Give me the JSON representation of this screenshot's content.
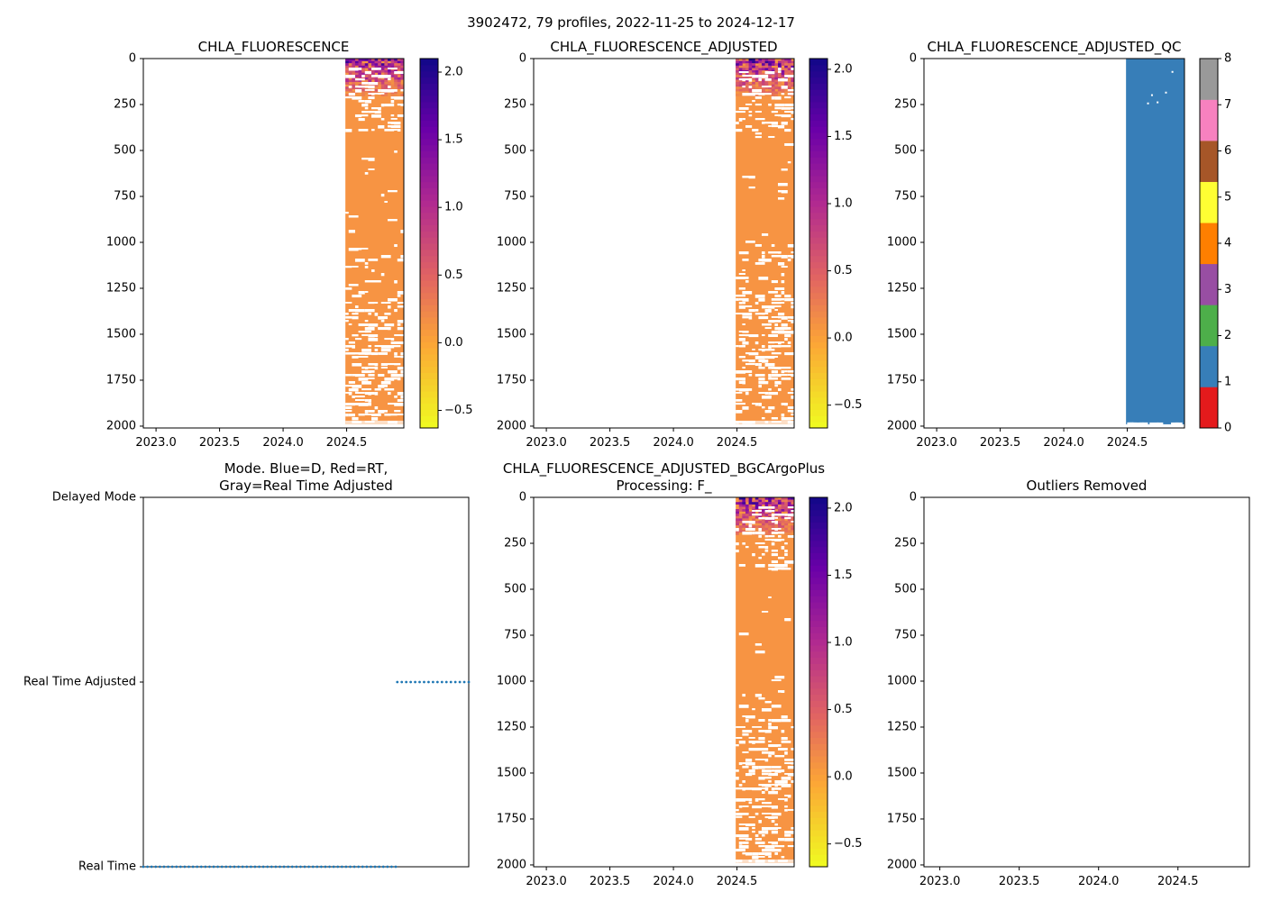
{
  "figure": {
    "suptitle": "3902472, 79 profiles, 2022-11-25 to 2024-12-17"
  },
  "colors": {
    "fill_orange": "#f79443",
    "qc_blue": "#377eb8",
    "mode_dots": "#1f77b4",
    "axis": "#000000",
    "background": "#ffffff"
  },
  "chart_data": [
    {
      "id": "chla-fluorescence",
      "type": "heatmap",
      "title": "CHLA_FLUORESCENCE",
      "x_ticks": [
        "2023.0",
        "2023.5",
        "2024.0",
        "2024.5"
      ],
      "x_tick_values": [
        2023.0,
        2023.5,
        2024.0,
        2024.5
      ],
      "xlim": [
        2022.9,
        2024.95
      ],
      "y_ticks": [
        "0",
        "250",
        "500",
        "750",
        "1000",
        "1250",
        "1500",
        "1750",
        "2000"
      ],
      "y_tick_values": [
        0,
        250,
        500,
        750,
        1000,
        1250,
        1500,
        1750,
        2000
      ],
      "ylim": [
        2010,
        0
      ],
      "data_x_range": [
        2024.49,
        2024.96
      ],
      "data_depth_range": [
        0,
        1990
      ],
      "colorbar": {
        "cmap": "plasma_r",
        "ticks": [
          "−0.5",
          "0.0",
          "0.5",
          "1.0",
          "1.5",
          "2.0"
        ],
        "tick_values": [
          -0.5,
          0.0,
          0.5,
          1.0,
          1.5,
          2.0
        ],
        "range": [
          -0.63,
          2.1
        ]
      }
    },
    {
      "id": "chla-fluorescence-adjusted",
      "type": "heatmap",
      "title": "CHLA_FLUORESCENCE_ADJUSTED",
      "x_ticks": [
        "2023.0",
        "2023.5",
        "2024.0",
        "2024.5"
      ],
      "x_tick_values": [
        2023.0,
        2023.5,
        2024.0,
        2024.5
      ],
      "xlim": [
        2022.9,
        2024.95
      ],
      "y_ticks": [
        "0",
        "250",
        "500",
        "750",
        "1000",
        "1250",
        "1500",
        "1750",
        "2000"
      ],
      "y_tick_values": [
        0,
        250,
        500,
        750,
        1000,
        1250,
        1500,
        1750,
        2000
      ],
      "ylim": [
        2010,
        0
      ],
      "data_x_range": [
        2024.49,
        2024.96
      ],
      "data_depth_range": [
        0,
        1990
      ],
      "colorbar": {
        "cmap": "plasma_r",
        "ticks": [
          "−0.5",
          "0.0",
          "0.5",
          "1.0",
          "1.5",
          "2.0"
        ],
        "tick_values": [
          -0.5,
          0.0,
          0.5,
          1.0,
          1.5,
          2.0
        ],
        "range": [
          -0.67,
          2.08
        ]
      }
    },
    {
      "id": "chla-fluorescence-adjusted-qc",
      "type": "heatmap",
      "title": "CHLA_FLUORESCENCE_ADJUSTED_QC",
      "x_ticks": [
        "2023.0",
        "2023.5",
        "2024.0",
        "2024.5"
      ],
      "x_tick_values": [
        2023.0,
        2023.5,
        2024.0,
        2024.5
      ],
      "xlim": [
        2022.9,
        2024.95
      ],
      "y_ticks": [
        "0",
        "250",
        "500",
        "750",
        "1000",
        "1250",
        "1500",
        "1750",
        "2000"
      ],
      "y_tick_values": [
        0,
        250,
        500,
        750,
        1000,
        1250,
        1500,
        1750,
        2000
      ],
      "ylim": [
        2010,
        0
      ],
      "data_x_range": [
        2024.49,
        2024.96
      ],
      "data_depth_range": [
        0,
        1990
      ],
      "qc_value": 1,
      "colorbar": {
        "cmap": "categorical",
        "ticks": [
          "0",
          "1",
          "2",
          "3",
          "4",
          "5",
          "6",
          "7",
          "8"
        ],
        "tick_values": [
          0,
          1,
          2,
          3,
          4,
          5,
          6,
          7,
          8
        ],
        "range": [
          0,
          8
        ],
        "category_colors": [
          "#e41a1c",
          "#377eb8",
          "#4daf4a",
          "#984ea3",
          "#ff7f00",
          "#ffff33",
          "#a65628",
          "#f781bf",
          "#999999"
        ]
      }
    },
    {
      "id": "data-mode",
      "type": "scatter",
      "title": "Mode. Blue=D, Red=RT,\nGray=Real Time Adjusted",
      "y_ticks": [
        "Delayed Mode",
        "Real Time Adjusted",
        "Real Time"
      ],
      "y_tick_values": [
        2,
        1,
        0
      ],
      "ylim": [
        0,
        2
      ],
      "xlim": [
        2022.9,
        2024.95
      ],
      "series": [
        {
          "name": "Real Time",
          "y": 0,
          "x_start": 2022.9,
          "x_end": 2024.49,
          "points": 62
        },
        {
          "name": "Real Time Adjusted",
          "y": 1,
          "x_start": 2024.5,
          "x_end": 2024.95,
          "points": 17
        }
      ]
    },
    {
      "id": "chla-bgcargoplus",
      "type": "heatmap",
      "title": "CHLA_FLUORESCENCE_ADJUSTED_BGCArgoPlus\nProcessing: F_",
      "x_ticks": [
        "2023.0",
        "2023.5",
        "2024.0",
        "2024.5"
      ],
      "x_tick_values": [
        2023.0,
        2023.5,
        2024.0,
        2024.5
      ],
      "xlim": [
        2022.9,
        2024.95
      ],
      "y_ticks": [
        "0",
        "250",
        "500",
        "750",
        "1000",
        "1250",
        "1500",
        "1750",
        "2000"
      ],
      "y_tick_values": [
        0,
        250,
        500,
        750,
        1000,
        1250,
        1500,
        1750,
        2000
      ],
      "ylim": [
        2010,
        0
      ],
      "data_x_range": [
        2024.49,
        2024.96
      ],
      "data_depth_range": [
        0,
        1990
      ],
      "colorbar": {
        "cmap": "plasma_r",
        "ticks": [
          "−0.5",
          "0.0",
          "0.5",
          "1.0",
          "1.5",
          "2.0"
        ],
        "tick_values": [
          -0.5,
          0.0,
          0.5,
          1.0,
          1.5,
          2.0
        ],
        "range": [
          -0.67,
          2.08
        ]
      }
    },
    {
      "id": "outliers-removed",
      "type": "scatter",
      "title": "Outliers Removed",
      "x_ticks": [
        "2023.0",
        "2023.5",
        "2024.0",
        "2024.5"
      ],
      "x_tick_values": [
        2023.0,
        2023.5,
        2024.0,
        2024.5
      ],
      "xlim": [
        2022.9,
        2024.95
      ],
      "y_ticks": [
        "0",
        "250",
        "500",
        "750",
        "1000",
        "1250",
        "1500",
        "1750",
        "2000"
      ],
      "y_tick_values": [
        0,
        250,
        500,
        750,
        1000,
        1250,
        1500,
        1750,
        2000
      ],
      "ylim": [
        2010,
        0
      ],
      "series": []
    }
  ]
}
